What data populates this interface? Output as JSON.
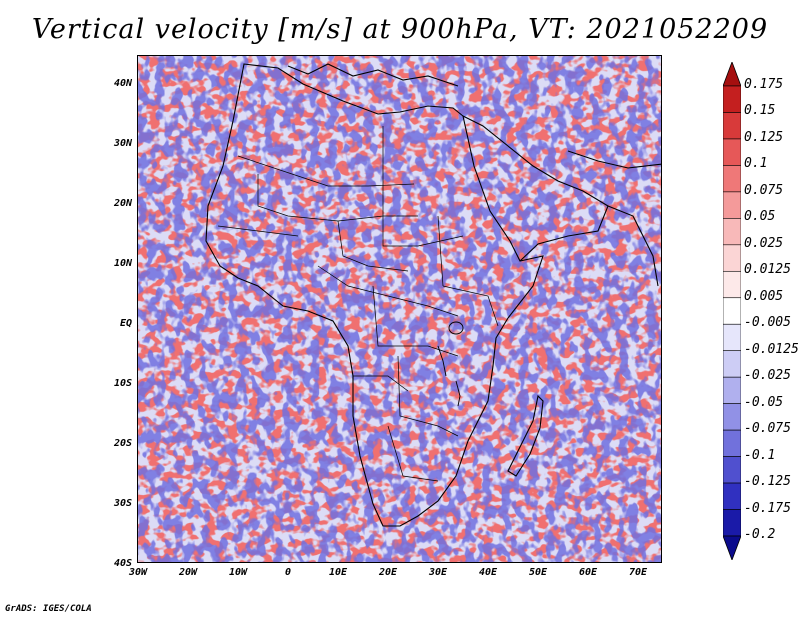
{
  "title": "Vertical velocity [m/s] at 900hPa, VT: 2021052209",
  "credit": "GrADS: IGES/COLA",
  "lat_labels": [
    "40N",
    "30N",
    "20N",
    "10N",
    "EQ",
    "10S",
    "20S",
    "30S",
    "40S"
  ],
  "lon_labels": [
    "30W",
    "20W",
    "10W",
    "0",
    "10E",
    "20E",
    "30E",
    "40E",
    "50E",
    "60E",
    "70E"
  ],
  "colorbar": {
    "labels": [
      "0.175",
      "0.15",
      "0.125",
      "0.1",
      "0.075",
      "0.05",
      "0.025",
      "0.0125",
      "0.005",
      "-0.005",
      "-0.0125",
      "-0.025",
      "-0.05",
      "-0.075",
      "-0.1",
      "-0.125",
      "-0.175",
      "-0.2"
    ],
    "colors": [
      "#a50f0f",
      "#c41f1f",
      "#d83a3a",
      "#e65858",
      "#ef7878",
      "#f49a9a",
      "#f8b9b9",
      "#fbd5d5",
      "#fde9e9",
      "#ffffff",
      "#e6e6fb",
      "#cdcdf5",
      "#b0b0ee",
      "#9191e6",
      "#7171dc",
      "#5050cf",
      "#3030c0",
      "#1a1aa8",
      "#0b0b8c"
    ]
  },
  "colors": {
    "border": "#000000",
    "positive": "#f26d6d",
    "negative": "#6f6fe3"
  }
}
